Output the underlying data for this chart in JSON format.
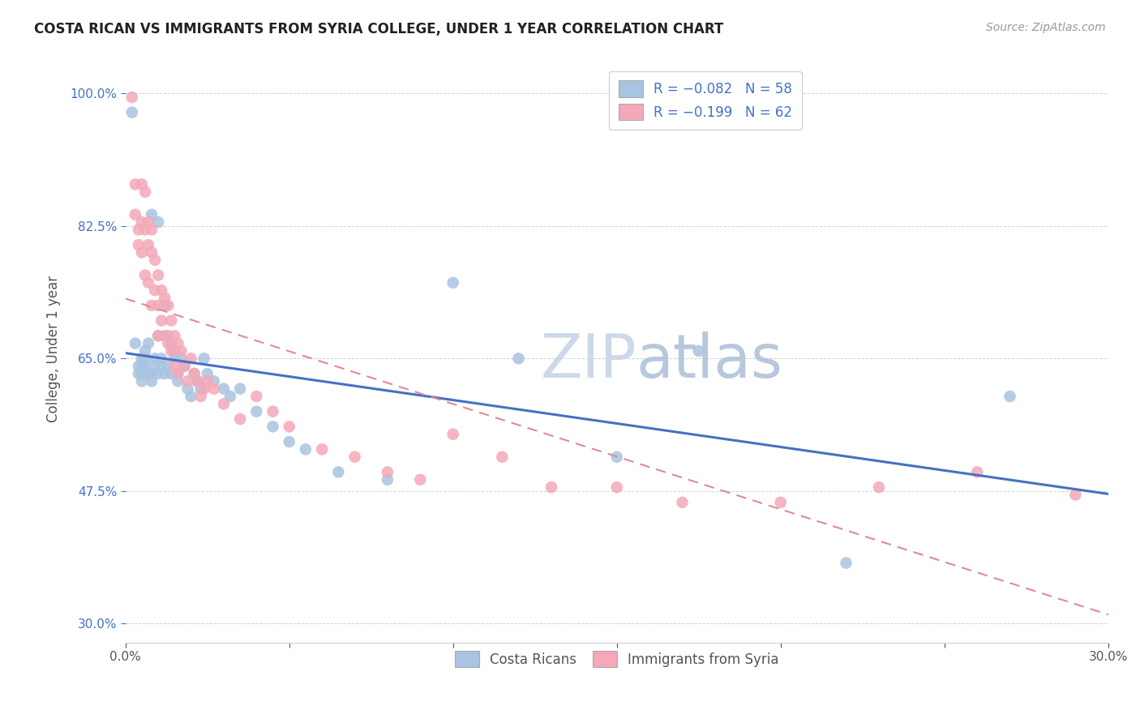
{
  "title": "COSTA RICAN VS IMMIGRANTS FROM SYRIA COLLEGE, UNDER 1 YEAR CORRELATION CHART",
  "source": "Source: ZipAtlas.com",
  "ylabel": "College, Under 1 year",
  "xmin": 0.0,
  "xmax": 0.3,
  "ymin": 0.275,
  "ymax": 1.05,
  "yticks": [
    0.3,
    0.475,
    0.65,
    0.825,
    1.0
  ],
  "ytick_labels": [
    "30.0%",
    "47.5%",
    "65.0%",
    "82.5%",
    "100.0%"
  ],
  "xticks": [
    0.0,
    0.05,
    0.1,
    0.15,
    0.2,
    0.25,
    0.3
  ],
  "xtick_labels": [
    "0.0%",
    "",
    "",
    "",
    "",
    "",
    "30.0%"
  ],
  "color_blue": "#a8c4e0",
  "color_pink": "#f4a8b8",
  "line_blue": "#4472c4",
  "line_pink": "#e08898",
  "watermark_color": "#cdd9e8",
  "cr_x": [
    0.002,
    0.003,
    0.004,
    0.004,
    0.005,
    0.005,
    0.005,
    0.005,
    0.006,
    0.006,
    0.006,
    0.007,
    0.007,
    0.008,
    0.008,
    0.008,
    0.009,
    0.009,
    0.01,
    0.01,
    0.01,
    0.011,
    0.011,
    0.012,
    0.012,
    0.013,
    0.013,
    0.014,
    0.014,
    0.015,
    0.015,
    0.016,
    0.016,
    0.017,
    0.018,
    0.019,
    0.02,
    0.021,
    0.022,
    0.023,
    0.024,
    0.025,
    0.027,
    0.03,
    0.032,
    0.035,
    0.04,
    0.045,
    0.05,
    0.055,
    0.065,
    0.08,
    0.1,
    0.12,
    0.15,
    0.175,
    0.22,
    0.27
  ],
  "cr_y": [
    0.975,
    0.67,
    0.64,
    0.63,
    0.65,
    0.64,
    0.63,
    0.62,
    0.66,
    0.65,
    0.64,
    0.67,
    0.63,
    0.84,
    0.63,
    0.62,
    0.65,
    0.64,
    0.83,
    0.68,
    0.63,
    0.65,
    0.64,
    0.72,
    0.63,
    0.68,
    0.64,
    0.67,
    0.63,
    0.66,
    0.65,
    0.63,
    0.62,
    0.65,
    0.64,
    0.61,
    0.6,
    0.63,
    0.62,
    0.61,
    0.65,
    0.63,
    0.62,
    0.61,
    0.6,
    0.61,
    0.58,
    0.56,
    0.54,
    0.53,
    0.5,
    0.49,
    0.75,
    0.65,
    0.52,
    0.66,
    0.38,
    0.6
  ],
  "sy_x": [
    0.002,
    0.003,
    0.003,
    0.004,
    0.004,
    0.005,
    0.005,
    0.005,
    0.006,
    0.006,
    0.006,
    0.007,
    0.007,
    0.007,
    0.008,
    0.008,
    0.008,
    0.009,
    0.009,
    0.01,
    0.01,
    0.01,
    0.011,
    0.011,
    0.012,
    0.012,
    0.013,
    0.013,
    0.014,
    0.014,
    0.015,
    0.015,
    0.016,
    0.016,
    0.017,
    0.018,
    0.019,
    0.02,
    0.021,
    0.022,
    0.023,
    0.024,
    0.025,
    0.027,
    0.03,
    0.035,
    0.04,
    0.045,
    0.05,
    0.06,
    0.07,
    0.08,
    0.09,
    0.1,
    0.115,
    0.13,
    0.15,
    0.17,
    0.2,
    0.23,
    0.26,
    0.29
  ],
  "sy_y": [
    0.995,
    0.88,
    0.84,
    0.82,
    0.8,
    0.88,
    0.83,
    0.79,
    0.87,
    0.82,
    0.76,
    0.83,
    0.8,
    0.75,
    0.82,
    0.79,
    0.72,
    0.78,
    0.74,
    0.76,
    0.72,
    0.68,
    0.74,
    0.7,
    0.73,
    0.68,
    0.72,
    0.67,
    0.7,
    0.66,
    0.68,
    0.64,
    0.67,
    0.63,
    0.66,
    0.64,
    0.62,
    0.65,
    0.63,
    0.62,
    0.6,
    0.61,
    0.62,
    0.61,
    0.59,
    0.57,
    0.6,
    0.58,
    0.56,
    0.53,
    0.52,
    0.5,
    0.49,
    0.55,
    0.52,
    0.48,
    0.48,
    0.46,
    0.46,
    0.48,
    0.5,
    0.47
  ]
}
